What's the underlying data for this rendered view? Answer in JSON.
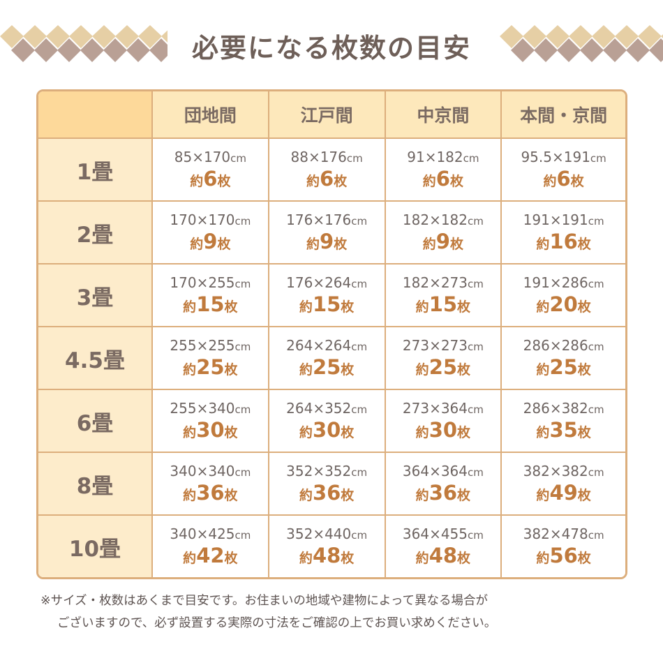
{
  "title": "必要になる枚数の目安",
  "colors": {
    "border": "#dcae7c",
    "accent": "#c07a3c",
    "header": "#fde8bb",
    "text": "#7a6a62"
  },
  "columns": [
    "団地間",
    "江戸間",
    "中京間",
    "本間・京間"
  ],
  "rows": [
    {
      "label": "1畳",
      "cells": [
        [
          "85×170",
          "6"
        ],
        [
          "88×176",
          "6"
        ],
        [
          "91×182",
          "6"
        ],
        [
          "95.5×191",
          "6"
        ]
      ]
    },
    {
      "label": "2畳",
      "cells": [
        [
          "170×170",
          "9"
        ],
        [
          "176×176",
          "9"
        ],
        [
          "182×182",
          "9"
        ],
        [
          "191×191",
          "16"
        ]
      ]
    },
    {
      "label": "3畳",
      "cells": [
        [
          "170×255",
          "15"
        ],
        [
          "176×264",
          "15"
        ],
        [
          "182×273",
          "15"
        ],
        [
          "191×286",
          "20"
        ]
      ]
    },
    {
      "label": "4.5畳",
      "cells": [
        [
          "255×255",
          "25"
        ],
        [
          "264×264",
          "25"
        ],
        [
          "273×273",
          "25"
        ],
        [
          "286×286",
          "25"
        ]
      ]
    },
    {
      "label": "6畳",
      "cells": [
        [
          "255×340",
          "30"
        ],
        [
          "264×352",
          "30"
        ],
        [
          "273×364",
          "30"
        ],
        [
          "286×382",
          "35"
        ]
      ]
    },
    {
      "label": "8畳",
      "cells": [
        [
          "340×340",
          "36"
        ],
        [
          "352×352",
          "36"
        ],
        [
          "364×364",
          "36"
        ],
        [
          "382×382",
          "49"
        ]
      ]
    },
    {
      "label": "10畳",
      "cells": [
        [
          "340×425",
          "42"
        ],
        [
          "352×440",
          "48"
        ],
        [
          "364×455",
          "48"
        ],
        [
          "382×478",
          "56"
        ]
      ]
    }
  ],
  "unit": "cm",
  "prefix": "約",
  "suffix": "枚",
  "note": [
    "※サイズ・枚数はあくまで目安です。お住まいの地域や建物によって異なる場合が",
    "ございますので、必ず設置する実際の寸法をご確認の上でお買い求めください。"
  ]
}
